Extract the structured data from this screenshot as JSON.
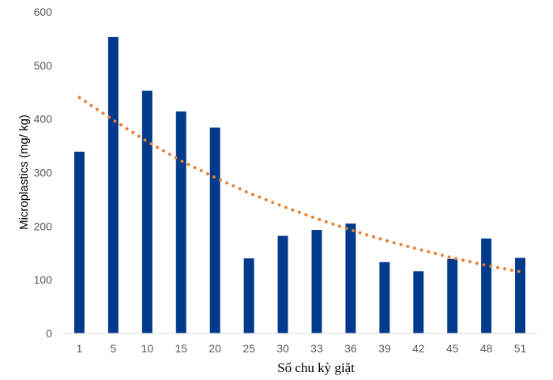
{
  "chart_data": {
    "type": "bar",
    "title": "",
    "xlabel": "Số chu kỳ giặt",
    "ylabel": "Microplastics (mg/ kg)",
    "ylim": [
      0,
      600
    ],
    "yticks": [
      "0",
      "100",
      "200",
      "300",
      "400",
      "500",
      "600"
    ],
    "grid": false,
    "legend": "none",
    "categories": [
      "1",
      "5",
      "10",
      "15",
      "20",
      "25",
      "30",
      "33",
      "36",
      "39",
      "42",
      "45",
      "48",
      "51"
    ],
    "series": [
      {
        "values": [
          339,
          553,
          453,
          414,
          384,
          140,
          182,
          193,
          205,
          133,
          116,
          139,
          177,
          141
        ],
        "color": "#003a8c"
      }
    ],
    "trendline": {
      "style": "dotted",
      "color": "#ed7d31",
      "values": [
        440,
        398,
        358,
        322,
        291,
        262,
        237,
        214,
        193,
        174,
        157,
        141,
        127,
        115
      ]
    }
  }
}
